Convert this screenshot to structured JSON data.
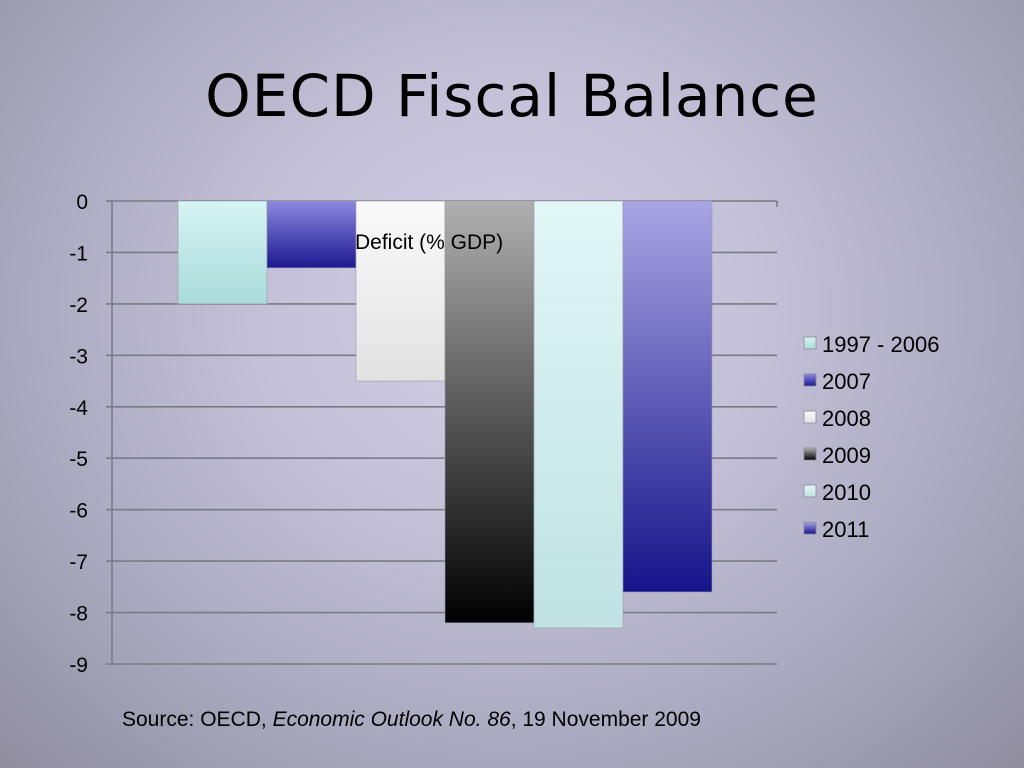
{
  "slide": {
    "title": "OECD Fiscal Balance",
    "source_prefix": "Source: OECD, ",
    "source_publication": "Economic Outlook No. 86",
    "source_suffix": ", 19 November 2009"
  },
  "chart_data": {
    "type": "bar",
    "title": "Deficit (% GDP)",
    "categories": [
      "1997 - 2006",
      "2007",
      "2008",
      "2009",
      "2010",
      "2011"
    ],
    "values": [
      -2.0,
      -1.3,
      -3.5,
      -8.2,
      -8.3,
      -7.6
    ],
    "ylim": [
      -9,
      0
    ],
    "yticks": [
      0,
      -1,
      -2,
      -3,
      -4,
      -5,
      -6,
      -7,
      -8,
      -9
    ],
    "xlabel": "",
    "ylabel": "",
    "grid": true,
    "legend": "right",
    "series": [
      {
        "name": "1997 - 2006",
        "value": -2.0,
        "color": "#c6ecec"
      },
      {
        "name": "2007",
        "value": -1.3,
        "color": "#3b37b0"
      },
      {
        "name": "2008",
        "value": -3.5,
        "color": "#f0f0f0"
      },
      {
        "name": "2009",
        "value": -8.2,
        "color": "#555555"
      },
      {
        "name": "2010",
        "value": -8.3,
        "color": "#d4eeee"
      },
      {
        "name": "2011",
        "value": -7.6,
        "color": "#4c48b8"
      }
    ]
  }
}
